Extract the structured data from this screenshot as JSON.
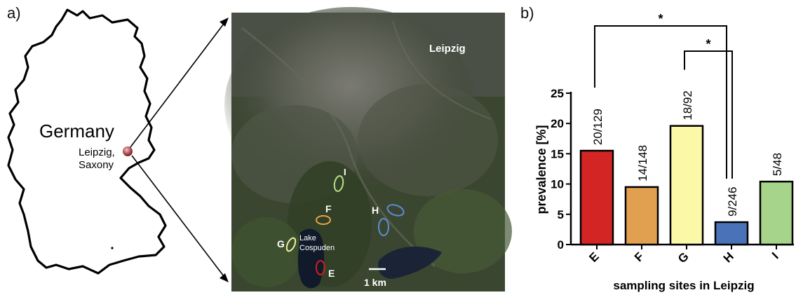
{
  "panel_a": {
    "label": "a)",
    "country_label": "Germany",
    "city_label_line1": "Leipzig,",
    "city_label_line2": "Saxony",
    "satellite": {
      "city_name": "Leipzig",
      "lake_line1": "Lake",
      "lake_line2": "Cospuden",
      "scale_label": "1 km",
      "sites": [
        {
          "id": "I",
          "color": "#b8e08a"
        },
        {
          "id": "F",
          "color": "#e8a04a"
        },
        {
          "id": "H",
          "color": "#5b8ed6"
        },
        {
          "id": "G",
          "color": "#f2f0a0"
        },
        {
          "id": "E",
          "color": "#d21e1e"
        }
      ]
    }
  },
  "panel_b": {
    "label": "b)",
    "significance": [
      {
        "from": "E",
        "to": "H",
        "label": "*"
      },
      {
        "from": "G",
        "to": "H",
        "label": "*"
      }
    ]
  },
  "chart_data": {
    "type": "bar",
    "xlabel": "sampling sites in Leipzig",
    "ylabel": "prevalence [%]",
    "ylim": [
      0,
      25
    ],
    "yticks": [
      "0",
      "5",
      "10",
      "15",
      "20",
      "25"
    ],
    "categories": [
      "E",
      "F",
      "G",
      "H",
      "I"
    ],
    "values": [
      15.5,
      9.5,
      19.6,
      3.7,
      10.4
    ],
    "data_labels": [
      "20/129",
      "14/148",
      "18/92",
      "9/246",
      "5/48"
    ],
    "colors": [
      "#d42525",
      "#e0a050",
      "#fbf8a8",
      "#4a72b8",
      "#a6d48a"
    ]
  }
}
